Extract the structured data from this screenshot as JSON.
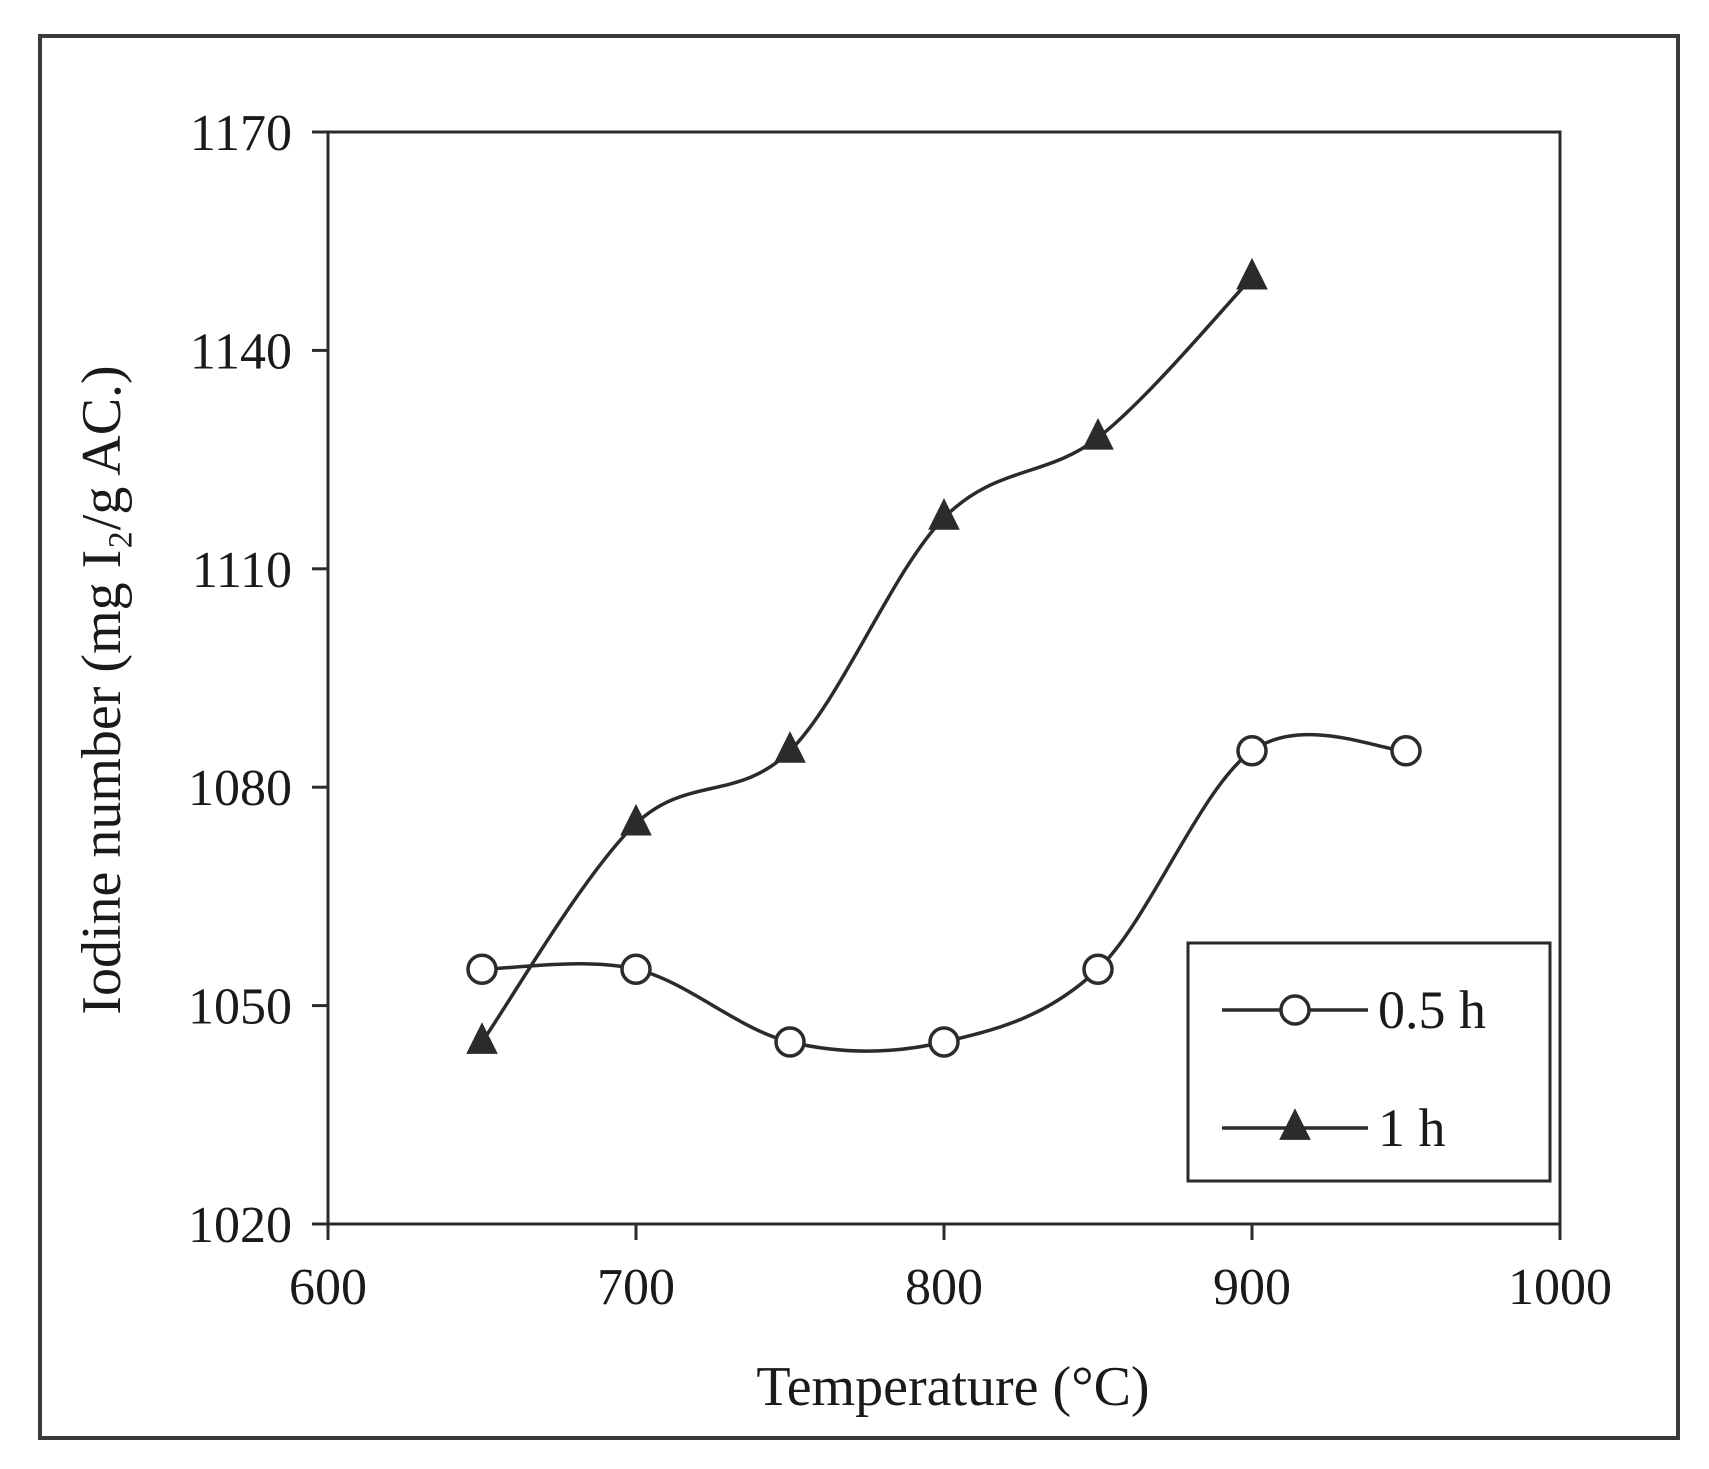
{
  "chart_data": {
    "type": "line",
    "title": "",
    "xlabel": "Temperature (°C)",
    "ylabel": "Iodine number (mg I₂/g AC.)",
    "xlim": [
      600,
      1000
    ],
    "ylim": [
      1020,
      1170
    ],
    "x_ticks": [
      600,
      700,
      800,
      900,
      1000
    ],
    "y_ticks": [
      1020,
      1050,
      1080,
      1110,
      1140,
      1170
    ],
    "x_tick_labels": [
      "600",
      "700",
      "800",
      "900",
      "1000"
    ],
    "y_tick_labels": [
      "1020",
      "1050",
      "1080",
      "1110",
      "1140",
      "1170"
    ],
    "grid": false,
    "legend_position": "bottom-right",
    "series": [
      {
        "name": "0.5 h",
        "marker": "circle-open",
        "x": [
          650,
          700,
          750,
          800,
          850,
          900,
          950
        ],
        "y": [
          1055,
          1055,
          1045,
          1045,
          1055,
          1085,
          1085
        ]
      },
      {
        "name": "1 h",
        "marker": "triangle-filled",
        "x": [
          650,
          700,
          750,
          800,
          850,
          900
        ],
        "y": [
          1045,
          1075,
          1085,
          1117,
          1128,
          1150
        ]
      }
    ]
  }
}
